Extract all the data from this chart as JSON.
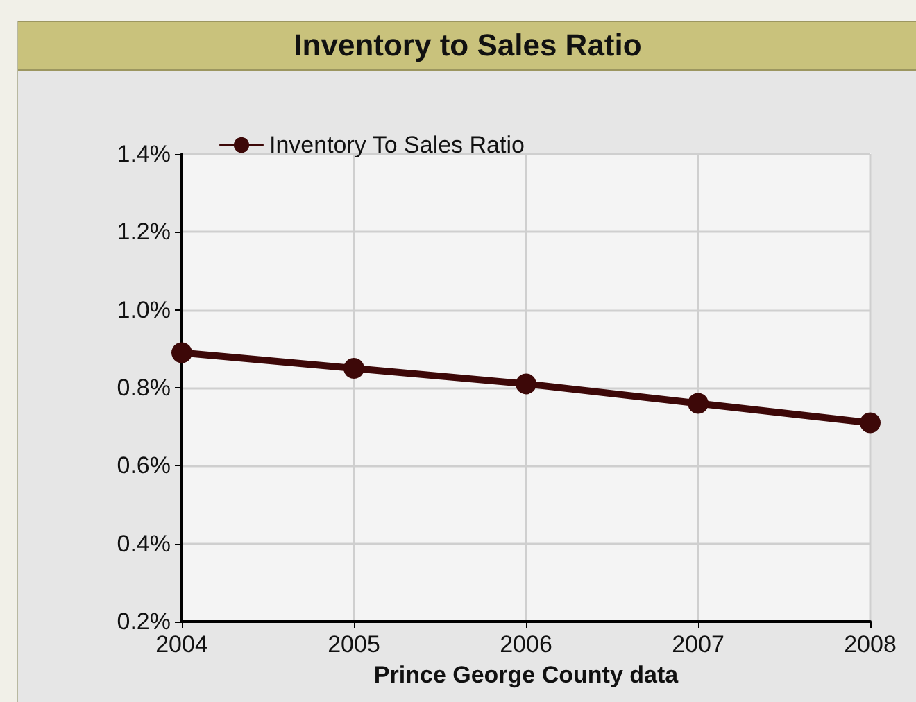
{
  "chart_data": {
    "type": "line",
    "title": "Inventory to Sales Ratio",
    "xlabel": "Prince George County data",
    "x": [
      2004,
      2005,
      2006,
      2007,
      2008
    ],
    "series": [
      {
        "name": "Inventory To Sales Ratio",
        "color": "#3d0808",
        "values": [
          0.89,
          0.85,
          0.81,
          0.76,
          0.71
        ]
      }
    ],
    "xlim": [
      2004,
      2008
    ],
    "xticks": [
      2004,
      2005,
      2006,
      2007,
      2008
    ],
    "ylim": [
      0.2,
      1.4
    ],
    "yticks": [
      {
        "value": 0.2,
        "label": "0.2%"
      },
      {
        "value": 0.4,
        "label": "0.4%"
      },
      {
        "value": 0.6,
        "label": "0.6%"
      },
      {
        "value": 0.8,
        "label": "0.8%"
      },
      {
        "value": 1.0,
        "label": "1.0%"
      },
      {
        "value": 1.2,
        "label": "1.2%"
      },
      {
        "value": 1.4,
        "label": "1.4%"
      }
    ],
    "grid": true,
    "legend": "top left",
    "marker": "circle",
    "line_style": "solid"
  }
}
